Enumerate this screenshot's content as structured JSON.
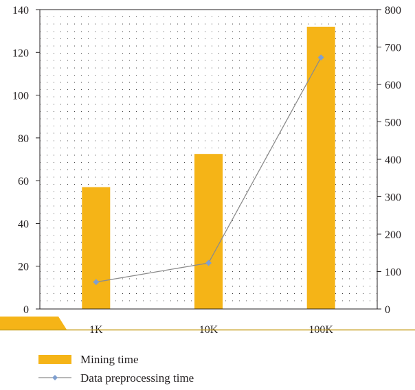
{
  "chart_data": {
    "type": "bar",
    "categories": [
      "1K",
      "10K",
      "100K"
    ],
    "series": [
      {
        "name": "Mining time",
        "type": "bar",
        "axis": "left",
        "values": [
          57,
          72.5,
          132
        ],
        "color": "#f5b417"
      },
      {
        "name": "Data preprocessing time",
        "type": "line",
        "axis": "right",
        "values": [
          72,
          123,
          672
        ],
        "color": "#7f9fcf",
        "line_color": "#8c8c8c"
      }
    ],
    "y_left": {
      "min": 0,
      "max": 140,
      "ticks": [
        0,
        20,
        40,
        60,
        80,
        100,
        120,
        140
      ]
    },
    "y_right": {
      "min": 0,
      "max": 800,
      "ticks": [
        0,
        100,
        200,
        300,
        400,
        500,
        600,
        700,
        800
      ]
    },
    "grid": true,
    "grid_style": "dotted",
    "legend_position": "bottom-left",
    "decoration_color": "#f5b417",
    "baseline_color": "#c8a020"
  }
}
